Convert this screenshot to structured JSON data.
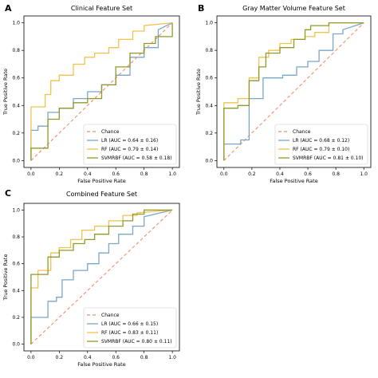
{
  "chart_data": [
    {
      "panel_label": "A",
      "type": "line",
      "title": "Clinical Feature Set",
      "xlabel": "False Positive Rate",
      "ylabel": "True Positive Rate",
      "xlim": [
        0,
        1
      ],
      "ylim": [
        0,
        1
      ],
      "xticks": [
        "0.0",
        "0.2",
        "0.4",
        "0.6",
        "0.8",
        "1.0"
      ],
      "yticks": [
        "0.0",
        "0.2",
        "0.4",
        "0.6",
        "0.8",
        "1.0"
      ],
      "grid": false,
      "legend_position": "lower right",
      "chance": {
        "name": "Chance",
        "x": [
          0,
          1
        ],
        "y": [
          0,
          1
        ]
      },
      "series": [
        {
          "name": "LR (AUC = 0.64 ± 0.16)",
          "x": [
            0,
            0,
            0.05,
            0.05,
            0.12,
            0.12,
            0.2,
            0.2,
            0.3,
            0.3,
            0.4,
            0.4,
            0.5,
            0.5,
            0.6,
            0.6,
            0.7,
            0.7,
            0.8,
            0.8,
            0.9,
            0.9,
            1.0
          ],
          "y": [
            0,
            0.22,
            0.22,
            0.25,
            0.25,
            0.35,
            0.35,
            0.38,
            0.38,
            0.45,
            0.45,
            0.5,
            0.5,
            0.55,
            0.55,
            0.62,
            0.62,
            0.75,
            0.75,
            0.82,
            0.82,
            0.95,
            1.0
          ]
        },
        {
          "name": "RF (AUC = 0.79 ± 0.14)",
          "x": [
            0,
            0,
            0.1,
            0.1,
            0.14,
            0.14,
            0.2,
            0.2,
            0.3,
            0.3,
            0.38,
            0.38,
            0.45,
            0.45,
            0.55,
            0.55,
            0.62,
            0.62,
            0.72,
            0.72,
            0.8,
            0.8,
            1.0
          ],
          "y": [
            0,
            0.39,
            0.39,
            0.48,
            0.48,
            0.58,
            0.58,
            0.62,
            0.62,
            0.7,
            0.7,
            0.75,
            0.75,
            0.78,
            0.78,
            0.82,
            0.82,
            0.88,
            0.88,
            0.94,
            0.94,
            0.98,
            1.0
          ]
        },
        {
          "name": "SVMRBF (AUC = 0.58 ± 0.18)",
          "x": [
            0,
            0,
            0.12,
            0.12,
            0.2,
            0.2,
            0.3,
            0.3,
            0.4,
            0.4,
            0.5,
            0.5,
            0.6,
            0.6,
            0.7,
            0.7,
            0.8,
            0.8,
            0.88,
            0.88,
            1.0,
            1.0
          ],
          "y": [
            0,
            0.09,
            0.09,
            0.3,
            0.3,
            0.38,
            0.38,
            0.42,
            0.42,
            0.45,
            0.45,
            0.55,
            0.55,
            0.68,
            0.68,
            0.78,
            0.78,
            0.85,
            0.85,
            0.9,
            0.9,
            1.0
          ]
        }
      ]
    },
    {
      "panel_label": "B",
      "type": "line",
      "title": "Gray Matter Volume Feature Set",
      "xlabel": "False Positive Rate",
      "ylabel": "True Positive Rate",
      "xlim": [
        0,
        1
      ],
      "ylim": [
        0,
        1
      ],
      "xticks": [
        "0.0",
        "0.2",
        "0.4",
        "0.6",
        "0.8",
        "1.0"
      ],
      "yticks": [
        "0.0",
        "0.2",
        "0.4",
        "0.6",
        "0.8",
        "1.0"
      ],
      "grid": false,
      "legend_position": "lower right",
      "chance": {
        "name": "Chance",
        "x": [
          0,
          1
        ],
        "y": [
          0,
          1
        ]
      },
      "series": [
        {
          "name": "LR (AUC = 0.68 ± 0.12)",
          "x": [
            0,
            0,
            0.12,
            0.12,
            0.18,
            0.18,
            0.28,
            0.28,
            0.42,
            0.42,
            0.52,
            0.52,
            0.6,
            0.6,
            0.68,
            0.68,
            0.78,
            0.78,
            0.85,
            0.85,
            1.0
          ],
          "y": [
            0,
            0.12,
            0.12,
            0.15,
            0.15,
            0.45,
            0.45,
            0.6,
            0.6,
            0.62,
            0.62,
            0.68,
            0.68,
            0.72,
            0.72,
            0.8,
            0.8,
            0.92,
            0.92,
            0.95,
            1.0
          ]
        },
        {
          "name": "RF (AUC = 0.79 ± 0.10)",
          "x": [
            0,
            0,
            0.1,
            0.1,
            0.18,
            0.18,
            0.25,
            0.25,
            0.32,
            0.32,
            0.4,
            0.4,
            0.48,
            0.48,
            0.58,
            0.58,
            0.65,
            0.65,
            0.75,
            0.75,
            1.0
          ],
          "y": [
            0,
            0.42,
            0.42,
            0.45,
            0.45,
            0.6,
            0.6,
            0.75,
            0.75,
            0.8,
            0.8,
            0.85,
            0.85,
            0.88,
            0.88,
            0.9,
            0.9,
            0.93,
            0.93,
            1.0,
            1.0
          ]
        },
        {
          "name": "SVMRBF (AUC = 0.81 ± 0.10)",
          "x": [
            0,
            0,
            0.1,
            0.1,
            0.18,
            0.18,
            0.25,
            0.25,
            0.3,
            0.3,
            0.4,
            0.4,
            0.5,
            0.5,
            0.58,
            0.58,
            0.62,
            0.62,
            0.75,
            0.75,
            1.0
          ],
          "y": [
            0,
            0.38,
            0.38,
            0.4,
            0.4,
            0.58,
            0.58,
            0.68,
            0.68,
            0.78,
            0.78,
            0.82,
            0.82,
            0.88,
            0.88,
            0.95,
            0.95,
            0.98,
            0.98,
            1.0,
            1.0
          ]
        }
      ]
    },
    {
      "panel_label": "C",
      "type": "line",
      "title": "Combined Feature Set",
      "xlabel": "False Positive Rate",
      "ylabel": "True Positive Rate",
      "xlim": [
        0,
        1
      ],
      "ylim": [
        0,
        1
      ],
      "xticks": [
        "0.0",
        "0.2",
        "0.4",
        "0.6",
        "0.8",
        "1.0"
      ],
      "yticks": [
        "0.0",
        "0.2",
        "0.4",
        "0.6",
        "0.8",
        "1.0"
      ],
      "grid": false,
      "legend_position": "lower right",
      "chance": {
        "name": "Chance",
        "x": [
          0,
          1
        ],
        "y": [
          0,
          1
        ]
      },
      "series": [
        {
          "name": "LR (AUC = 0.66 ± 0.15)",
          "x": [
            0,
            0,
            0.12,
            0.12,
            0.18,
            0.18,
            0.22,
            0.22,
            0.3,
            0.3,
            0.4,
            0.4,
            0.48,
            0.48,
            0.55,
            0.55,
            0.62,
            0.62,
            0.72,
            0.72,
            0.8,
            0.8,
            1.0
          ],
          "y": [
            0,
            0.2,
            0.2,
            0.32,
            0.32,
            0.35,
            0.35,
            0.48,
            0.48,
            0.55,
            0.55,
            0.6,
            0.6,
            0.68,
            0.68,
            0.75,
            0.75,
            0.82,
            0.82,
            0.88,
            0.88,
            0.95,
            1.0
          ]
        },
        {
          "name": "RF (AUC = 0.83 ± 0.11)",
          "x": [
            0,
            0,
            0.05,
            0.05,
            0.14,
            0.14,
            0.2,
            0.2,
            0.28,
            0.28,
            0.36,
            0.36,
            0.45,
            0.45,
            0.55,
            0.55,
            0.65,
            0.65,
            0.75,
            0.75,
            1.0
          ],
          "y": [
            0,
            0.42,
            0.42,
            0.55,
            0.55,
            0.68,
            0.68,
            0.72,
            0.72,
            0.78,
            0.78,
            0.85,
            0.85,
            0.88,
            0.88,
            0.92,
            0.92,
            0.96,
            0.96,
            0.98,
            1.0
          ]
        },
        {
          "name": "SVMRBF (AUC = 0.80 ± 0.11)",
          "x": [
            0,
            0,
            0.12,
            0.12,
            0.2,
            0.2,
            0.3,
            0.3,
            0.38,
            0.38,
            0.45,
            0.45,
            0.55,
            0.55,
            0.65,
            0.65,
            0.72,
            0.72,
            0.8,
            0.8,
            1.0
          ],
          "y": [
            0,
            0.52,
            0.52,
            0.65,
            0.65,
            0.7,
            0.7,
            0.75,
            0.75,
            0.78,
            0.78,
            0.82,
            0.82,
            0.88,
            0.88,
            0.92,
            0.92,
            0.97,
            0.97,
            1.0,
            1.0
          ]
        }
      ]
    }
  ],
  "colors": {
    "chance": "#f28d6b",
    "lr": "#7aa6c9",
    "rf": "#f2c24f",
    "svmrbf": "#8f9a2a",
    "axis": "#000000"
  }
}
